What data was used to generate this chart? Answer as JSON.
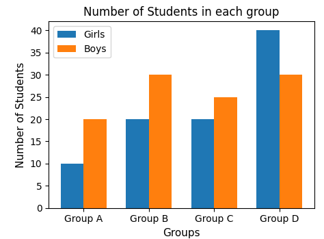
{
  "categories": [
    "Group A",
    "Group B",
    "Group C",
    "Group D"
  ],
  "girls": [
    10,
    20,
    20,
    40
  ],
  "boys": [
    20,
    30,
    25,
    30
  ],
  "girls_color": "#1f77b4",
  "boys_color": "#ff7f0e",
  "title": "Number of Students in each group",
  "xlabel": "Groups",
  "ylabel": "Number of Students",
  "ylim": [
    0,
    42
  ],
  "yticks": [
    0,
    5,
    10,
    15,
    20,
    25,
    30,
    35,
    40
  ],
  "legend_labels": [
    "Girls",
    "Boys"
  ],
  "bar_width": 0.35,
  "figsize": [
    4.74,
    3.49
  ],
  "dpi": 100
}
